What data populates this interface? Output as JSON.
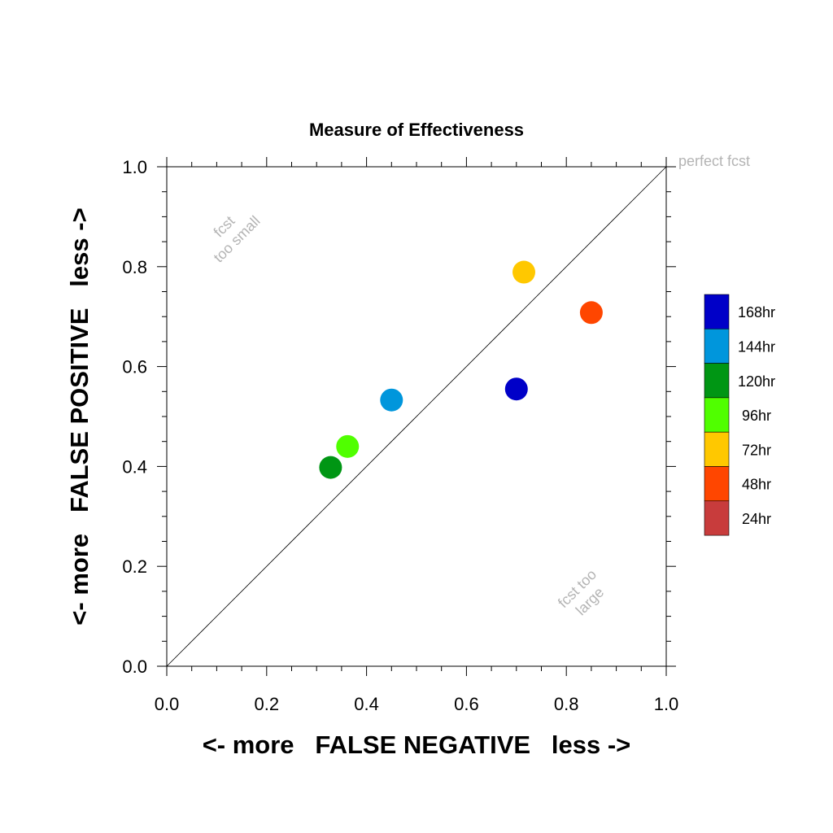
{
  "chart_data": {
    "type": "scatter",
    "title": "Measure of Effectiveness",
    "xlabel": "<- more   FALSE NEGATIVE   less ->",
    "ylabel": "<- more   FALSE POSITIVE   less ->",
    "xlim": [
      0.0,
      1.0
    ],
    "ylim": [
      0.0,
      1.0
    ],
    "xticks": [
      "0.0",
      "0.2",
      "0.4",
      "0.6",
      "0.8",
      "1.0"
    ],
    "yticks": [
      "0.0",
      "0.2",
      "0.4",
      "0.6",
      "0.8",
      "1.0"
    ],
    "grid": false,
    "legend_position": "right",
    "diagonal_reference_line": true,
    "annotations": {
      "perfect": "perfect fcst",
      "too_small_1": "fcst",
      "too_small_2": "too small",
      "too_large_1": "fcst too",
      "too_large_2": "large"
    },
    "series": [
      {
        "name": "168hr",
        "color": "#0000c8",
        "x": 0.7,
        "y": 0.555
      },
      {
        "name": "144hr",
        "color": "#0096dc",
        "x": 0.45,
        "y": 0.533
      },
      {
        "name": "120hr",
        "color": "#009614",
        "x": 0.328,
        "y": 0.398
      },
      {
        "name": "96hr",
        "color": "#50ff00",
        "x": 0.362,
        "y": 0.44
      },
      {
        "name": "72hr",
        "color": "#ffc800",
        "x": 0.715,
        "y": 0.789
      },
      {
        "name": "48hr",
        "color": "#ff4600",
        "x": 0.85,
        "y": 0.708
      },
      {
        "name": "24hr",
        "color": "#c83c3c",
        "x": null,
        "y": null
      }
    ]
  }
}
